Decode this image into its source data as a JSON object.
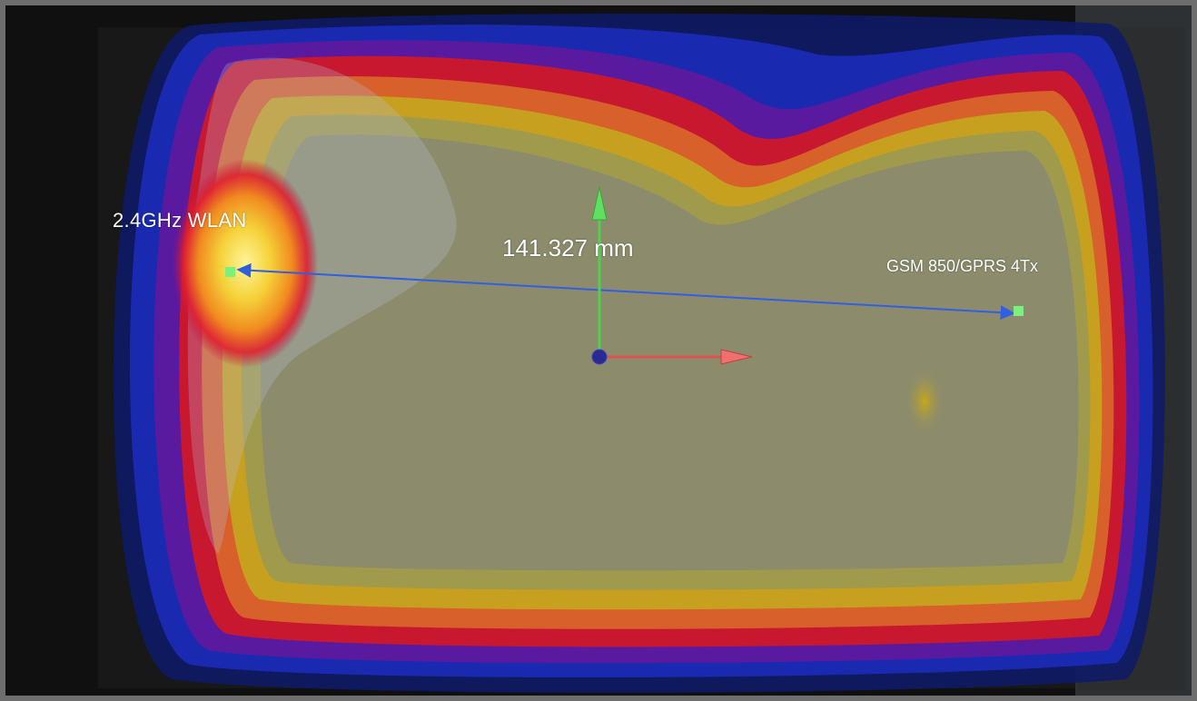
{
  "labels": {
    "wlan": "2.4GHz  WLAN",
    "distance": "141.327 mm",
    "gsm": "GSM 850/GPRS 4Tx"
  },
  "colors": {
    "board_core": "#8c8c6c",
    "ring_yellow": "#d4b020",
    "ring_red": "#c81830",
    "ring_blue": "#1828a8",
    "hotspot": "#f5e04a",
    "axis_x": "#e05050",
    "axis_y": "#50d050",
    "origin": "#2a2a90",
    "marker": "#7cf07c",
    "measure_line": "#3060e0"
  },
  "icons": [
    "axis-x-arrow",
    "axis-y-arrow",
    "origin-sphere",
    "wlan-marker",
    "gsm-marker",
    "measurement-line"
  ]
}
